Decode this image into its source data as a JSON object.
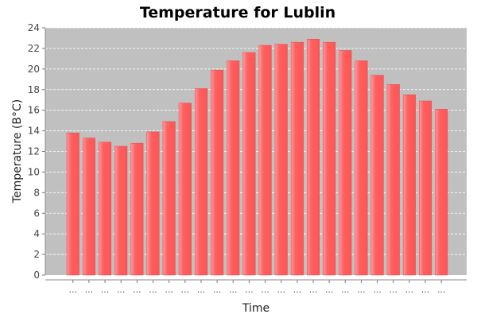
{
  "chart_data": {
    "type": "bar",
    "title": "Temperature for Lublin",
    "xlabel": "Time",
    "ylabel": "Temperature (B°C)",
    "ylim": [
      0,
      24
    ],
    "yticks": [
      0,
      2,
      4,
      6,
      8,
      10,
      12,
      14,
      16,
      18,
      20,
      22,
      24
    ],
    "grid": true,
    "categories": [
      "...",
      "...",
      "...",
      "...",
      "...",
      "...",
      "...",
      "...",
      "...",
      "...",
      "...",
      "...",
      "...",
      "...",
      "...",
      "...",
      "...",
      "...",
      "...",
      "...",
      "...",
      "...",
      "...",
      "..."
    ],
    "values": [
      13.8,
      13.3,
      12.9,
      12.5,
      12.8,
      13.9,
      14.9,
      16.7,
      18.1,
      19.9,
      20.8,
      21.6,
      22.3,
      22.4,
      22.6,
      22.9,
      22.6,
      21.8,
      20.8,
      19.4,
      18.5,
      17.5,
      16.9,
      16.1
    ],
    "colors": {
      "bar": "#ff5555",
      "bar_highlight": "#ff9a9a",
      "plot_background": "#c0c0c0",
      "gridline": "#ffffff"
    }
  }
}
